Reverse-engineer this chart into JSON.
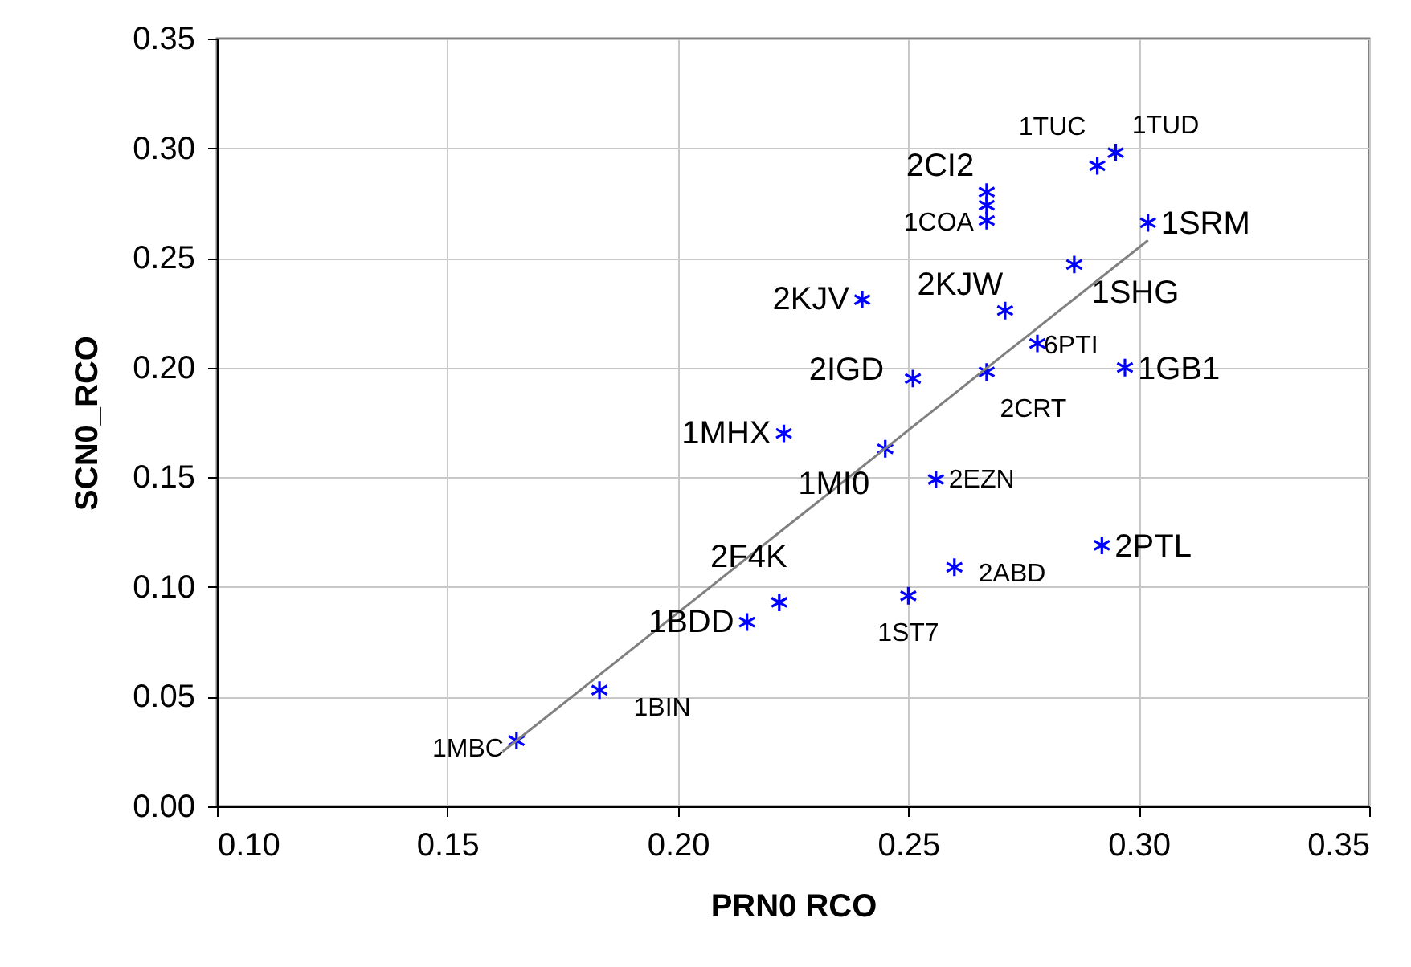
{
  "chart_data": {
    "type": "scatter",
    "xlabel": "PRN0  RCO",
    "ylabel": "SCN0_RCO",
    "xlim": [
      0.1,
      0.35
    ],
    "xticks": [
      {
        "value": 0.1,
        "label": "0.10"
      },
      0.15,
      {
        "value": 0.2,
        "label": "0.20"
      },
      0.25,
      {
        "value": 0.3,
        "label": "0.30"
      },
      0.35
    ],
    "ylim": [
      0,
      0.35
    ],
    "yticks": [
      {
        "value": 0,
        "label": "0.00"
      },
      0.05,
      {
        "value": 0.1,
        "label": "0.10"
      },
      0.15,
      {
        "value": 0.2,
        "label": "0.20"
      },
      0.25,
      {
        "value": 0.3,
        "label": "0.30"
      },
      0.35
    ],
    "grid": true,
    "marker": "cross",
    "series": [
      {
        "color": "#0000ff",
        "x": [
          0.291,
          0.295,
          0.267,
          0.267,
          0.267,
          0.302,
          0.286,
          0.271,
          0.24,
          0.278,
          0.251,
          0.267,
          0.297,
          0.223,
          0.245,
          0.256,
          0.292,
          0.26,
          0.25,
          0.222,
          0.215,
          0.183,
          0.165
        ],
        "values": [
          0.292,
          0.298,
          0.28,
          0.274,
          0.267,
          0.266,
          0.247,
          0.226,
          0.231,
          0.211,
          0.195,
          0.198,
          0.2,
          0.17,
          0.163,
          0.149,
          0.119,
          0.109,
          0.096,
          0.093,
          0.084,
          0.053,
          0.03
        ]
      },
      {
        "type": "line",
        "color": "#808080",
        "marker": "none",
        "x": [
          0.162,
          0.302
        ],
        "values": [
          0.025,
          0.258
        ]
      }
    ],
    "annotations": [
      {
        "text": "1TUC",
        "x": 0.291,
        "y": 0.292
      },
      {
        "text": "1TUD",
        "x": 0.295,
        "y": 0.298
      },
      {
        "text": "2CI2",
        "x": 0.267,
        "y": 0.28
      },
      {
        "text": "1COA",
        "x": 0.267,
        "y": 0.267
      },
      {
        "text": "1SRM",
        "x": 0.302,
        "y": 0.266
      },
      {
        "text": "1SHG",
        "x": 0.286,
        "y": 0.247
      },
      {
        "text": "2KJW",
        "x": 0.271,
        "y": 0.226
      },
      {
        "text": "2KJV",
        "x": 0.24,
        "y": 0.231
      },
      {
        "text": "6PTI",
        "x": 0.278,
        "y": 0.211
      },
      {
        "text": "2IGD",
        "x": 0.251,
        "y": 0.195
      },
      {
        "text": "2CRT",
        "x": 0.267,
        "y": 0.198
      },
      {
        "text": "1GB1",
        "x": 0.297,
        "y": 0.2
      },
      {
        "text": "1MHX",
        "x": 0.223,
        "y": 0.17
      },
      {
        "text": "1MI0",
        "x": 0.245,
        "y": 0.163
      },
      {
        "text": "2EZN",
        "x": 0.256,
        "y": 0.149
      },
      {
        "text": "2PTL",
        "x": 0.292,
        "y": 0.119
      },
      {
        "text": "2ABD",
        "x": 0.26,
        "y": 0.109
      },
      {
        "text": "1ST7",
        "x": 0.25,
        "y": 0.096
      },
      {
        "text": "2F4K",
        "x": 0.222,
        "y": 0.093
      },
      {
        "text": "1BDD",
        "x": 0.215,
        "y": 0.084
      },
      {
        "text": "1BIN",
        "x": 0.183,
        "y": 0.053
      },
      {
        "text": "1MBC",
        "x": 0.165,
        "y": 0.03
      }
    ]
  }
}
